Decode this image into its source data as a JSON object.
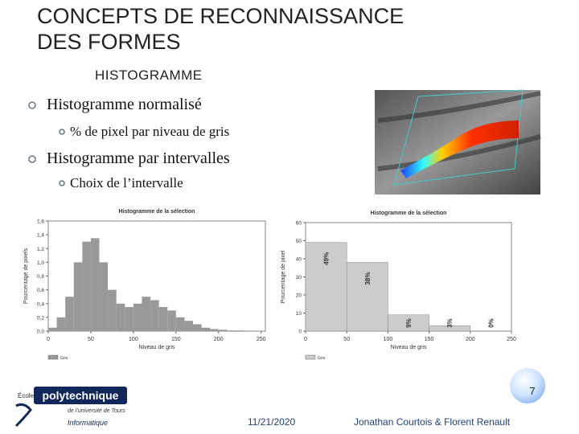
{
  "header": {
    "title_lines": [
      "CONCEPTS DE RECONNAISSANCE",
      "DES FORMES"
    ],
    "subtitle": "HISTOGRAMME"
  },
  "bullets": [
    {
      "text": "Histogramme normalisé",
      "sub": [
        "% de pixel par niveau de gris"
      ]
    },
    {
      "text": "Histogramme par intervalles",
      "sub": [
        "Choix de l’intervalle"
      ]
    }
  ],
  "charts": [
    {
      "type": "histogram",
      "title": "Histogramme de la sélection",
      "ylabel": "Pourcentage de pixels",
      "xlabel": "Niveau de gris",
      "legend": "Gris",
      "color": "#999999",
      "bins": [
        0,
        10,
        20,
        30,
        40,
        50,
        60,
        70,
        80,
        90,
        100,
        110,
        120,
        130,
        140,
        150,
        160,
        170,
        180,
        190,
        200,
        210,
        220,
        230,
        240,
        250,
        255
      ],
      "values": [
        0.05,
        0.2,
        0.5,
        1.0,
        1.3,
        1.35,
        1.0,
        0.6,
        0.4,
        0.35,
        0.4,
        0.5,
        0.45,
        0.35,
        0.3,
        0.2,
        0.15,
        0.1,
        0.05,
        0.03,
        0.02,
        0.01,
        0.01,
        0,
        0,
        0
      ],
      "xlim": [
        0,
        255
      ],
      "xticks": [
        0,
        50,
        100,
        150,
        200,
        250
      ],
      "ylim": [
        0,
        1.6
      ],
      "yticks": [
        {
          "value": 0,
          "label": "0,0"
        },
        {
          "value": 0.2,
          "label": "0,2"
        },
        {
          "value": 0.4,
          "label": "0,4"
        },
        {
          "value": 0.6,
          "label": "0,6"
        },
        {
          "value": 0.8,
          "label": "0,8"
        },
        {
          "value": 1.0,
          "label": "1,0"
        },
        {
          "value": 1.2,
          "label": "1,2"
        },
        {
          "value": 1.4,
          "label": "1,4"
        },
        {
          "value": 1.6,
          "label": "1,6"
        }
      ]
    },
    {
      "type": "histogram",
      "title": "Histogramme de la sélection",
      "ylabel": "Pourcentage de pixel",
      "xlabel": "Niveau de gris",
      "legend": "Gris",
      "color": "#cccccc",
      "bins": [
        0,
        50,
        100,
        150,
        200,
        250
      ],
      "values": [
        49,
        38,
        9,
        3,
        0
      ],
      "value_labels": [
        "49%",
        "38%",
        "9%",
        "3%",
        "0%"
      ],
      "xlim": [
        0,
        250
      ],
      "xticks": [
        0,
        50,
        100,
        150,
        200,
        250
      ],
      "ylim": [
        0,
        60
      ],
      "yticks": [
        0,
        10,
        20,
        30,
        40,
        50,
        60
      ]
    }
  ],
  "footer": {
    "page": "7",
    "date": "11/21/2020",
    "authors": "Jonathan Courtois & Florent Renault",
    "logo": {
      "school": "École",
      "name": "polytechnique",
      "sub": "de l’université de Tours",
      "dept": "Informatique"
    }
  }
}
